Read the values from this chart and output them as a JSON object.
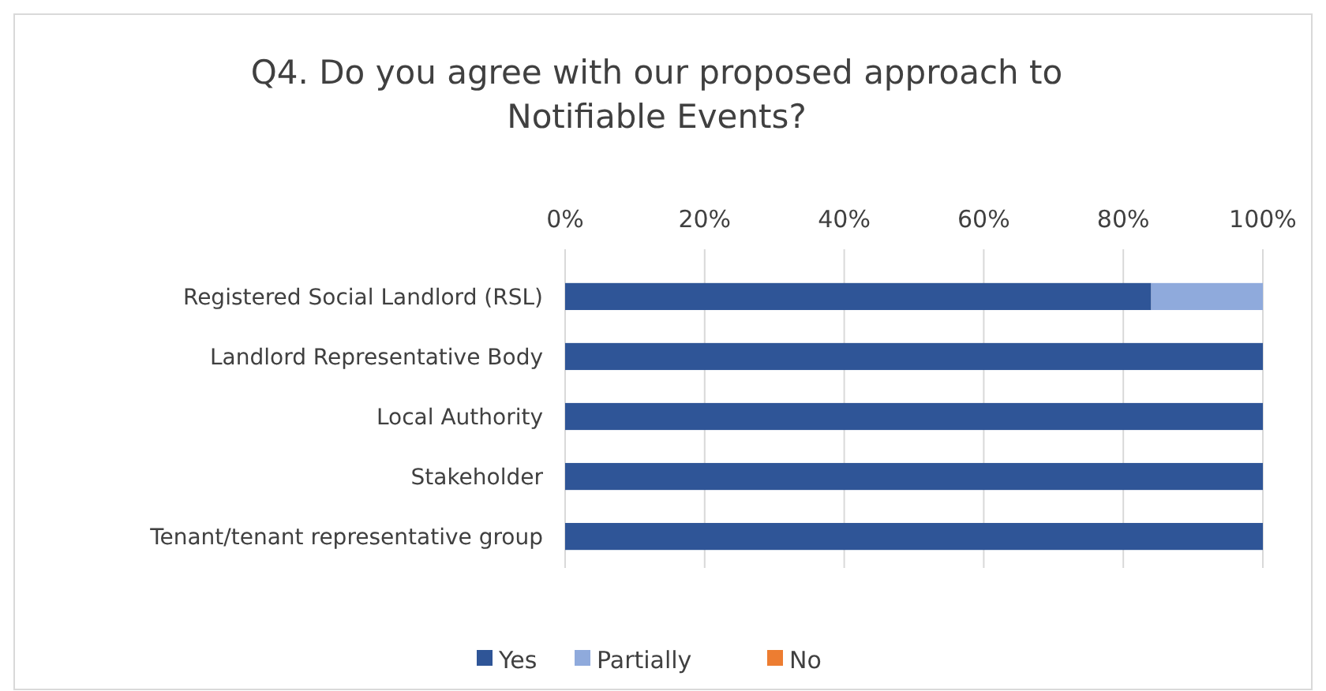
{
  "chart_data": {
    "type": "bar",
    "orientation": "horizontal",
    "stacked": true,
    "title": "Q4. Do you agree with our proposed approach to Notifiable Events?",
    "categories": [
      "Registered Social Landlord (RSL)",
      "Landlord Representative Body",
      "Local Authority",
      "Stakeholder",
      "Tenant/tenant representative group"
    ],
    "series": [
      {
        "name": "Yes",
        "color": "#2f5597",
        "values": [
          84,
          100,
          100,
          100,
          100
        ]
      },
      {
        "name": "Partially",
        "color": "#8faadc",
        "values": [
          16,
          0,
          0,
          0,
          0
        ]
      },
      {
        "name": "No",
        "color": "#ed7d31",
        "values": [
          0,
          0,
          0,
          0,
          0
        ]
      }
    ],
    "xlim": [
      0,
      100
    ],
    "xticks": [
      {
        "value": 0,
        "label": "0%"
      },
      {
        "value": 20,
        "label": "20%"
      },
      {
        "value": 40,
        "label": "40%"
      },
      {
        "value": 60,
        "label": "60%"
      },
      {
        "value": 80,
        "label": "80%"
      },
      {
        "value": 100,
        "label": "100%"
      }
    ],
    "grid": "x",
    "legend": "bottom"
  }
}
